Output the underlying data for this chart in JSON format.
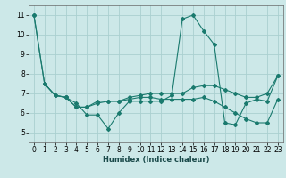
{
  "title": "",
  "xlabel": "Humidex (Indice chaleur)",
  "bg_color": "#cce8e8",
  "grid_color": "#aad0d0",
  "line_color": "#1a7a6e",
  "xlim": [
    -0.5,
    23.5
  ],
  "ylim": [
    4.5,
    11.5
  ],
  "xticks": [
    0,
    1,
    2,
    3,
    4,
    5,
    6,
    7,
    8,
    9,
    10,
    11,
    12,
    13,
    14,
    15,
    16,
    17,
    18,
    19,
    20,
    21,
    22,
    23
  ],
  "yticks": [
    5,
    6,
    7,
    8,
    9,
    10,
    11
  ],
  "series": [
    {
      "x": [
        0,
        1,
        2,
        3,
        4,
        5,
        6,
        7,
        8,
        9,
        10,
        11,
        12,
        13,
        14,
        15,
        16,
        17,
        18,
        19,
        20,
        21,
        22,
        23
      ],
      "y": [
        11.0,
        7.5,
        6.9,
        6.8,
        6.5,
        5.9,
        5.9,
        5.2,
        6.0,
        6.6,
        6.6,
        6.6,
        6.6,
        6.9,
        10.8,
        11.0,
        10.2,
        9.5,
        5.5,
        5.4,
        6.5,
        6.7,
        6.6,
        7.9
      ]
    },
    {
      "x": [
        0,
        1,
        2,
        3,
        4,
        5,
        6,
        7,
        8,
        9,
        10,
        11,
        12,
        13,
        14,
        15,
        16,
        17,
        18,
        19,
        20,
        21,
        22,
        23
      ],
      "y": [
        11.0,
        7.5,
        6.9,
        6.8,
        6.3,
        6.3,
        6.6,
        6.6,
        6.6,
        6.8,
        6.9,
        7.0,
        7.0,
        7.0,
        7.0,
        7.3,
        7.4,
        7.4,
        7.2,
        7.0,
        6.8,
        6.8,
        7.0,
        7.9
      ]
    },
    {
      "x": [
        1,
        2,
        3,
        4,
        5,
        6,
        7,
        8,
        9,
        10,
        11,
        12,
        13,
        14,
        15,
        16,
        17,
        18,
        19,
        20,
        21,
        22,
        23
      ],
      "y": [
        7.5,
        6.9,
        6.8,
        6.3,
        6.3,
        6.5,
        6.6,
        6.6,
        6.7,
        6.8,
        6.8,
        6.7,
        6.7,
        6.7,
        6.7,
        6.8,
        6.6,
        6.3,
        6.0,
        5.7,
        5.5,
        5.5,
        6.7
      ]
    }
  ]
}
